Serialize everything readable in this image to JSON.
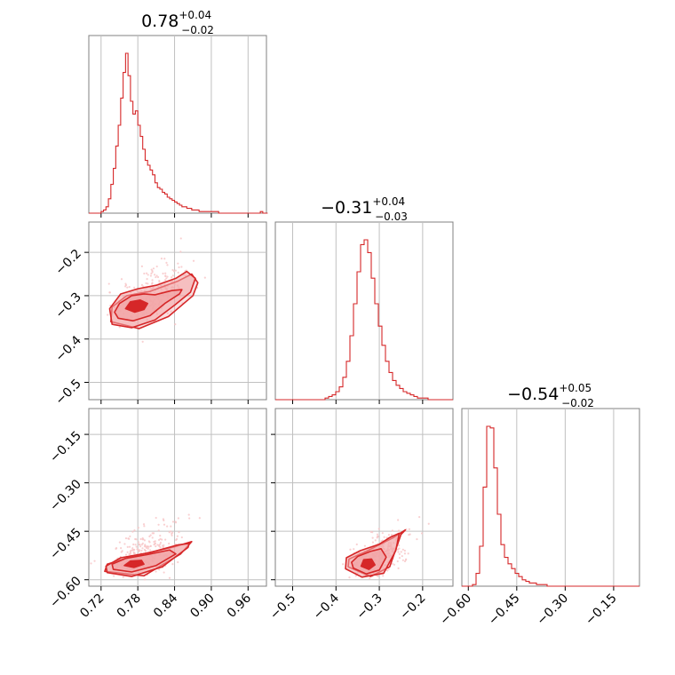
{
  "colors": {
    "series": "#d62728",
    "fill": "#f2a4a6",
    "scatter": "#f7c4c5",
    "grid": "#c0c0c0",
    "frame": "#808080"
  },
  "chart_data": {
    "type": "corner",
    "parameters": [
      {
        "median": "0.78",
        "plus": "+0.04",
        "minus": "−0.02",
        "range": [
          0.7,
          0.99
        ],
        "ticks": [
          0.72,
          0.78,
          0.84,
          0.9,
          0.96
        ],
        "tick_labels": [
          "0.72",
          "0.78",
          "0.84",
          "0.90",
          "0.96"
        ],
        "hist_bin_start": 0.7,
        "hist_bin_width": 0.004,
        "hist_counts": [
          0,
          0,
          0,
          0,
          0,
          1,
          2,
          4,
          9,
          18,
          28,
          42,
          55,
          72,
          88,
          100,
          86,
          70,
          62,
          64,
          55,
          48,
          40,
          33,
          30,
          27,
          24,
          19,
          16,
          15,
          13,
          12,
          10,
          9,
          8,
          7,
          6,
          5,
          4,
          4,
          3,
          3,
          2,
          2,
          2,
          1,
          1,
          1,
          1,
          1,
          1,
          1,
          1,
          0,
          0,
          0,
          0,
          0,
          0,
          0,
          0,
          0,
          0,
          0,
          0,
          0,
          0,
          0,
          0,
          0,
          1,
          0,
          0
        ]
      },
      {
        "median": "−0.31",
        "plus": "+0.04",
        "minus": "−0.03",
        "range": [
          -0.54,
          -0.13
        ],
        "ticks": [
          -0.5,
          -0.4,
          -0.3,
          -0.2
        ],
        "tick_labels": [
          "−0.5",
          "−0.4",
          "−0.3",
          "−0.2"
        ],
        "hist_bin_start": -0.54,
        "hist_bin_width": 0.0082,
        "hist_counts": [
          0,
          0,
          0,
          0,
          0,
          0,
          0,
          0,
          0,
          0,
          0,
          0,
          0,
          0,
          1,
          2,
          3,
          5,
          8,
          14,
          24,
          40,
          60,
          80,
          97,
          100,
          92,
          76,
          60,
          46,
          34,
          24,
          17,
          12,
          9,
          7,
          5,
          4,
          3,
          2,
          1,
          1,
          1,
          0,
          0,
          0,
          0,
          0,
          0,
          0
        ]
      },
      {
        "median": "−0.54",
        "plus": "+0.05",
        "minus": "−0.02",
        "range": [
          -0.62,
          -0.07
        ],
        "ticks": [
          -0.6,
          -0.45,
          -0.3,
          -0.15
        ],
        "tick_labels": [
          "−0.60",
          "−0.45",
          "−0.30",
          "−0.15"
        ],
        "hist_bin_start": -0.62,
        "hist_bin_width": 0.011,
        "hist_counts": [
          0,
          0,
          0,
          1,
          8,
          25,
          62,
          100,
          99,
          74,
          45,
          26,
          18,
          14,
          11,
          8,
          6,
          4,
          3,
          2,
          2,
          1,
          1,
          1,
          0,
          0,
          0,
          0,
          0,
          0,
          0,
          0,
          0,
          0,
          0,
          0,
          0,
          0,
          0,
          0,
          0,
          0,
          0,
          0,
          0,
          0,
          0,
          0,
          0,
          0
        ]
      }
    ],
    "pairs": [
      {
        "x_param": 0,
        "y_param": 1,
        "center": [
          0.776,
          -0.325
        ],
        "contours": [
          [
            [
              0.76,
              -0.33
            ],
            [
              0.775,
              -0.338
            ],
            [
              0.79,
              -0.332
            ],
            [
              0.796,
              -0.318
            ],
            [
              0.784,
              -0.31
            ],
            [
              0.768,
              -0.314
            ]
          ],
          [
            [
              0.748,
              -0.352
            ],
            [
              0.772,
              -0.358
            ],
            [
              0.8,
              -0.346
            ],
            [
              0.824,
              -0.318
            ],
            [
              0.848,
              -0.296
            ],
            [
              0.852,
              -0.286
            ],
            [
              0.836,
              -0.288
            ],
            [
              0.808,
              -0.298
            ],
            [
              0.79,
              -0.296
            ],
            [
              0.77,
              -0.3
            ],
            [
              0.75,
              -0.318
            ],
            [
              0.742,
              -0.338
            ]
          ],
          [
            [
              0.738,
              -0.366
            ],
            [
              0.77,
              -0.374
            ],
            [
              0.808,
              -0.356
            ],
            [
              0.84,
              -0.322
            ],
            [
              0.866,
              -0.292
            ],
            [
              0.874,
              -0.26
            ],
            [
              0.86,
              -0.244
            ],
            [
              0.842,
              -0.26
            ],
            [
              0.81,
              -0.276
            ],
            [
              0.78,
              -0.284
            ],
            [
              0.752,
              -0.296
            ],
            [
              0.734,
              -0.33
            ]
          ],
          [
            [
              0.736,
              -0.36
            ],
            [
              0.782,
              -0.376
            ],
            [
              0.83,
              -0.348
            ],
            [
              0.87,
              -0.3
            ],
            [
              0.878,
              -0.27
            ],
            [
              0.868,
              -0.25
            ],
            [
              0.846,
              -0.266
            ],
            [
              0.8,
              -0.29
            ],
            [
              0.762,
              -0.3
            ],
            [
              0.738,
              -0.326
            ]
          ]
        ],
        "scatter_spread": [
          0.035,
          0.04
        ]
      },
      {
        "x_param": 0,
        "y_param": 2,
        "center": [
          0.77,
          -0.55
        ],
        "contours": [
          [
            [
              0.758,
              -0.556
            ],
            [
              0.774,
              -0.562
            ],
            [
              0.79,
              -0.552
            ],
            [
              0.786,
              -0.54
            ],
            [
              0.768,
              -0.542
            ]
          ],
          [
            [
              0.74,
              -0.568
            ],
            [
              0.77,
              -0.576
            ],
            [
              0.81,
              -0.556
            ],
            [
              0.842,
              -0.52
            ],
            [
              0.832,
              -0.508
            ],
            [
              0.796,
              -0.522
            ],
            [
              0.76,
              -0.534
            ],
            [
              0.738,
              -0.552
            ]
          ],
          [
            [
              0.73,
              -0.578
            ],
            [
              0.77,
              -0.59
            ],
            [
              0.82,
              -0.56
            ],
            [
              0.862,
              -0.5
            ],
            [
              0.864,
              -0.488
            ],
            [
              0.846,
              -0.492
            ],
            [
              0.8,
              -0.516
            ],
            [
              0.752,
              -0.532
            ],
            [
              0.728,
              -0.558
            ]
          ],
          [
            [
              0.726,
              -0.574
            ],
            [
              0.79,
              -0.588
            ],
            [
              0.85,
              -0.52
            ],
            [
              0.868,
              -0.482
            ],
            [
              0.84,
              -0.498
            ],
            [
              0.77,
              -0.528
            ],
            [
              0.73,
              -0.552
            ]
          ]
        ],
        "scatter_spread": [
          0.035,
          0.05
        ]
      },
      {
        "x_param": 1,
        "y_param": 2,
        "center": [
          -0.325,
          -0.55
        ],
        "contours": [
          [
            [
              -0.342,
              -0.558
            ],
            [
              -0.324,
              -0.568
            ],
            [
              -0.31,
              -0.554
            ],
            [
              -0.318,
              -0.536
            ],
            [
              -0.336,
              -0.538
            ]
          ],
          [
            [
              -0.36,
              -0.564
            ],
            [
              -0.33,
              -0.582
            ],
            [
              -0.3,
              -0.57
            ],
            [
              -0.284,
              -0.53
            ],
            [
              -0.296,
              -0.504
            ],
            [
              -0.32,
              -0.512
            ],
            [
              -0.35,
              -0.528
            ],
            [
              -0.364,
              -0.546
            ]
          ],
          [
            [
              -0.378,
              -0.566
            ],
            [
              -0.34,
              -0.592
            ],
            [
              -0.29,
              -0.58
            ],
            [
              -0.262,
              -0.51
            ],
            [
              -0.254,
              -0.456
            ],
            [
              -0.274,
              -0.468
            ],
            [
              -0.3,
              -0.49
            ],
            [
              -0.344,
              -0.51
            ],
            [
              -0.376,
              -0.532
            ]
          ],
          [
            [
              -0.372,
              -0.56
            ],
            [
              -0.32,
              -0.59
            ],
            [
              -0.276,
              -0.56
            ],
            [
              -0.25,
              -0.46
            ],
            [
              -0.24,
              -0.446
            ],
            [
              -0.268,
              -0.47
            ],
            [
              -0.33,
              -0.512
            ],
            [
              -0.37,
              -0.536
            ]
          ]
        ],
        "scatter_spread": [
          0.04,
          0.04
        ]
      }
    ]
  }
}
